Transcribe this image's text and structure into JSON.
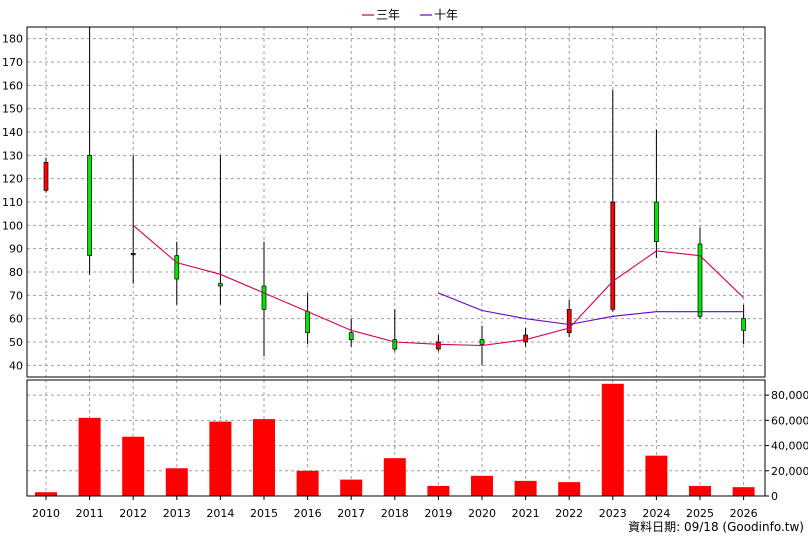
{
  "legend": {
    "items": [
      {
        "label": "三年",
        "color": "#d6005a"
      },
      {
        "label": "十年",
        "color": "#6a00c8"
      }
    ]
  },
  "footer": {
    "text": "資料日期: 09/18  (Goodinfo.tw)"
  },
  "colors": {
    "up": "#ff0000",
    "down": "#00e600",
    "volume": "#ff0000",
    "grid": "#a0a0a0"
  },
  "chart_data": [
    {
      "type": "candlestick",
      "x": [
        "2010",
        "2011",
        "2012",
        "2013",
        "2014",
        "2015",
        "2016",
        "2017",
        "2018",
        "2019",
        "2020",
        "2021",
        "2022",
        "2023",
        "2024",
        "2025",
        "2026"
      ],
      "ylim": [
        35,
        185
      ],
      "yticks": [
        40,
        50,
        60,
        70,
        80,
        90,
        100,
        110,
        120,
        130,
        140,
        150,
        160,
        170,
        180
      ],
      "candles": [
        {
          "x": "2010",
          "open": 115,
          "high": 129,
          "low": 114,
          "close": 127
        },
        {
          "x": "2011",
          "open": 130,
          "high": 185,
          "low": 79,
          "close": 87
        },
        {
          "x": "2012",
          "open": 88,
          "high": 130,
          "low": 75,
          "close": 88
        },
        {
          "x": "2013",
          "open": 87,
          "high": 93,
          "low": 66,
          "close": 77
        },
        {
          "x": "2014",
          "open": 75,
          "high": 130,
          "low": 66,
          "close": 74
        },
        {
          "x": "2015",
          "open": 74,
          "high": 93,
          "low": 44,
          "close": 64
        },
        {
          "x": "2016",
          "open": 63,
          "high": 71,
          "low": 49,
          "close": 54
        },
        {
          "x": "2017",
          "open": 54,
          "high": 60,
          "low": 48,
          "close": 51
        },
        {
          "x": "2018",
          "open": 51,
          "high": 64,
          "low": 46,
          "close": 47
        },
        {
          "x": "2019",
          "open": 47,
          "high": 53,
          "low": 46,
          "close": 50
        },
        {
          "x": "2020",
          "open": 51,
          "high": 57,
          "low": 40,
          "close": 49
        },
        {
          "x": "2021",
          "open": 50,
          "high": 56,
          "low": 48,
          "close": 53
        },
        {
          "x": "2022",
          "open": 54,
          "high": 68,
          "low": 52,
          "close": 64
        },
        {
          "x": "2023",
          "open": 64,
          "high": 158,
          "low": 63,
          "close": 110
        },
        {
          "x": "2024",
          "open": 110,
          "high": 141,
          "low": 86,
          "close": 93
        },
        {
          "x": "2025",
          "open": 92,
          "high": 99,
          "low": 60,
          "close": 61
        },
        {
          "x": "2026",
          "open": 60,
          "high": 66,
          "low": 49,
          "close": 55
        }
      ],
      "series": [
        {
          "name": "三年",
          "x": [
            "2012",
            "2013",
            "2014",
            "2015",
            "2016",
            "2017",
            "2018",
            "2019",
            "2020",
            "2021",
            "2022",
            "2023",
            "2024",
            "2025",
            "2026"
          ],
          "values": [
            100,
            84,
            79,
            71,
            63,
            55,
            50,
            49,
            48.5,
            51,
            56,
            76,
            89,
            87,
            69
          ]
        },
        {
          "name": "十年",
          "x": [
            "2019",
            "2020",
            "2021",
            "2022",
            "2023",
            "2024",
            "2025",
            "2026"
          ],
          "values": [
            71,
            63.5,
            60,
            57.5,
            61,
            63,
            63,
            63
          ]
        }
      ]
    },
    {
      "type": "bar",
      "categories": [
        "2010",
        "2011",
        "2012",
        "2013",
        "2014",
        "2015",
        "2016",
        "2017",
        "2018",
        "2019",
        "2020",
        "2021",
        "2022",
        "2023",
        "2024",
        "2025",
        "2026"
      ],
      "values": [
        3000,
        62000,
        47000,
        22000,
        59000,
        61000,
        20000,
        13000,
        30000,
        8000,
        16000,
        12000,
        11000,
        89000,
        32000,
        8000,
        7000
      ],
      "ylim": [
        0,
        92000
      ],
      "yticks": [
        0,
        20000,
        40000,
        60000,
        80000
      ],
      "ytick_labels": [
        "0",
        "20,000",
        "40,000",
        "60,000",
        "80,000"
      ]
    }
  ]
}
